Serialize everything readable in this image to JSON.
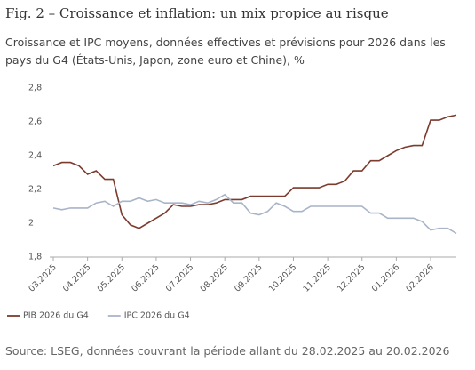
{
  "chart_data": {
    "type": "line",
    "title": "Fig. 2 – Croissance et inflation: un mix propice au risque",
    "subtitle": "Croissance et IPC moyens, données effectives et prévisions pour 2026 dans les pays du G4 (États-Unis, Japon, zone euro et Chine), %",
    "source": "Source: LSEG, données couvrant la période allant du 28.02.2025 au 20.02.2026",
    "categories": [
      "03.2025",
      null,
      null,
      null,
      "04.2025",
      null,
      null,
      null,
      "05.2025",
      null,
      null,
      null,
      "06.2025",
      null,
      null,
      null,
      "07.2025",
      null,
      null,
      null,
      "08.2025",
      null,
      null,
      null,
      "09.2025",
      null,
      null,
      null,
      "10.2025",
      null,
      null,
      null,
      "11.2025",
      null,
      null,
      null,
      "12.2025",
      null,
      null,
      null,
      "01.2026",
      null,
      null,
      null,
      "02.2026",
      null,
      null,
      null
    ],
    "series": [
      {
        "name": "PIB 2026 du G4",
        "color": "#7b3b2e",
        "values": [
          2.34,
          2.36,
          2.36,
          2.34,
          2.29,
          2.31,
          2.26,
          2.26,
          2.05,
          1.99,
          1.97,
          2.0,
          2.03,
          2.06,
          2.11,
          2.1,
          2.1,
          2.11,
          2.11,
          2.12,
          2.14,
          2.14,
          2.14,
          2.16,
          2.16,
          2.16,
          2.16,
          2.16,
          2.21,
          2.21,
          2.21,
          2.21,
          2.23,
          2.23,
          2.25,
          2.31,
          2.31,
          2.37,
          2.37,
          2.4,
          2.43,
          2.45,
          2.46,
          2.46,
          2.61,
          2.61,
          2.63,
          2.64
        ]
      },
      {
        "name": "IPC 2026 du G4",
        "color": "#a9b4c9",
        "values": [
          2.09,
          2.08,
          2.09,
          2.09,
          2.09,
          2.12,
          2.13,
          2.1,
          2.13,
          2.13,
          2.15,
          2.13,
          2.14,
          2.12,
          2.12,
          2.12,
          2.11,
          2.13,
          2.12,
          2.14,
          2.17,
          2.12,
          2.12,
          2.06,
          2.05,
          2.07,
          2.12,
          2.1,
          2.07,
          2.07,
          2.1,
          2.1,
          2.1,
          2.1,
          2.1,
          2.1,
          2.1,
          2.06,
          2.06,
          2.03,
          2.03,
          2.03,
          2.03,
          2.01,
          1.96,
          1.97,
          1.97,
          1.94
        ]
      }
    ],
    "ylim": [
      1.8,
      2.8
    ],
    "yticks": [
      {
        "value": 1.8,
        "label": "1,8"
      },
      2,
      {
        "value": 2.2,
        "label": "2,2"
      },
      {
        "value": 2.4,
        "label": "2,4"
      },
      {
        "value": 2.6,
        "label": "2,6"
      },
      {
        "value": 2.8,
        "label": "2,8"
      }
    ],
    "grid": false
  }
}
